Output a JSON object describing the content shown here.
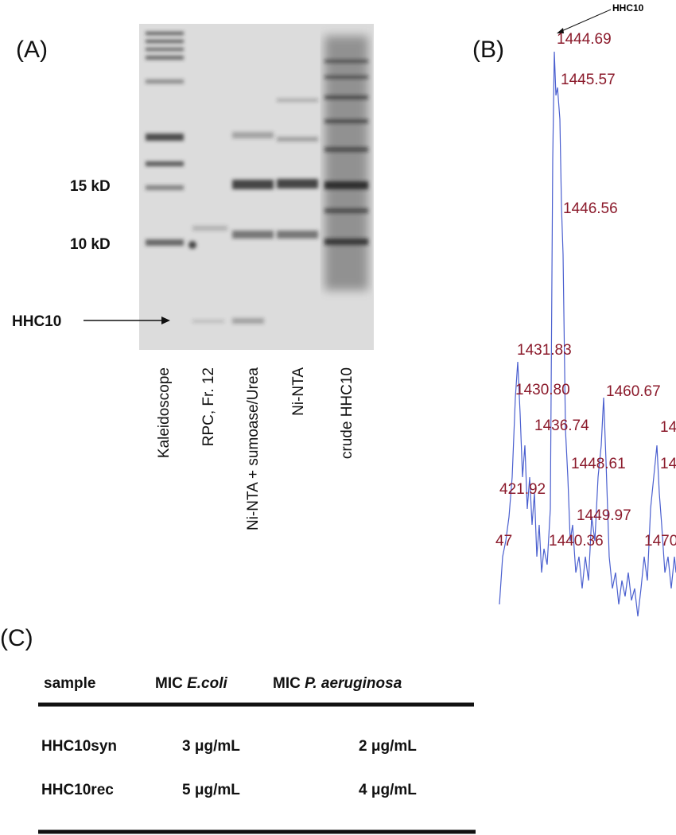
{
  "panel_a": {
    "label": "(A)",
    "markers": [
      "15 kD",
      "10 kD",
      "HHC10"
    ],
    "lanes": [
      "Kaleidoscope",
      "RPC, Fr. 12",
      "Ni-NTA + sumoase/Urea",
      "Ni-NTA",
      "crude HHC10"
    ]
  },
  "panel_b": {
    "label": "(B)",
    "arrow_label": "HHC10",
    "peak_labels": [
      "1444.69",
      "1445.57",
      "1446.56",
      "1431.83",
      "1430.80",
      "1460.67",
      "1436.74",
      "1448.61",
      "421.92",
      "1449.97",
      "47",
      "1440.36",
      "1470",
      "14",
      "14"
    ]
  },
  "panel_c": {
    "label": "(C)",
    "table": {
      "header": [
        "sample",
        {
          "prefix": "MIC",
          "organism": "E.coli"
        },
        {
          "prefix": "MIC",
          "organism": "P. aeruginosa"
        }
      ],
      "rows": [
        [
          "HHC10syn",
          "3 μg/mL",
          "2 μg/mL"
        ],
        [
          "HHC10rec",
          "5 μg/mL",
          "4 μg/mL"
        ]
      ]
    }
  }
}
